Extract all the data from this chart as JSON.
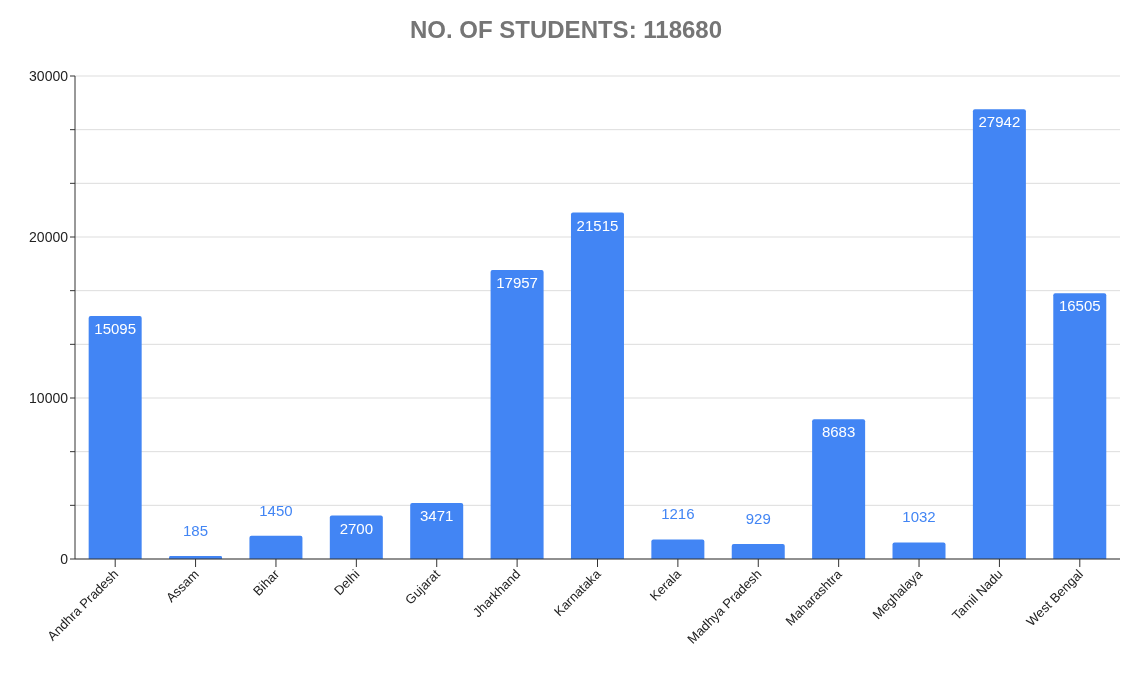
{
  "chart_data": {
    "type": "bar",
    "title": "NO. OF STUDENTS: 118680",
    "categories": [
      "Andhra Pradesh",
      "Assam",
      "Bihar",
      "Delhi",
      "Gujarat",
      "Jharkhand",
      "Karnataka",
      "Kerala",
      "Madhya Pradesh",
      "Maharashtra",
      "Meghalaya",
      "Tamil Nadu",
      "West Bengal"
    ],
    "values": [
      15095,
      185,
      1450,
      2700,
      3471,
      17957,
      21515,
      1216,
      929,
      8683,
      1032,
      27942,
      16505
    ],
    "color": "#4285f4",
    "ylim": [
      0,
      30000
    ],
    "yticks": [
      0,
      {
        "value": 3333.33,
        "label": null
      },
      {
        "value": 6666.67,
        "label": null
      },
      10000,
      {
        "value": 13333.33,
        "label": null
      },
      {
        "value": 16666.67,
        "label": null
      },
      20000,
      {
        "value": 23333.33,
        "label": null
      },
      {
        "value": 26666.67,
        "label": null
      },
      30000
    ],
    "grid": "y",
    "data_labels": true
  }
}
